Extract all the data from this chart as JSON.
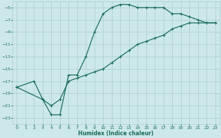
{
  "xlabel": "Humidex (Indice chaleur)",
  "bg_color": "#cce8ea",
  "grid_color": "#aacccc",
  "line_color": "#1a6b5a",
  "xlim": [
    -0.5,
    23.5
  ],
  "ylim": [
    -24,
    -4
  ],
  "xticks": [
    0,
    1,
    2,
    3,
    4,
    5,
    6,
    7,
    8,
    9,
    10,
    11,
    12,
    13,
    14,
    15,
    16,
    17,
    18,
    19,
    20,
    21,
    22,
    23
  ],
  "yticks": [
    -5,
    -7,
    -9,
    -11,
    -13,
    -15,
    -17,
    -19,
    -21,
    -23
  ],
  "line1_x": [
    0,
    2,
    3,
    4,
    5,
    6,
    7,
    8,
    9,
    10,
    11,
    12,
    13,
    14,
    15,
    16,
    17,
    18,
    19,
    20,
    21,
    22,
    23
  ],
  "line1_y": [
    -18,
    -17,
    -20,
    -22.5,
    -22.5,
    -16,
    -16,
    -13,
    -9,
    -6,
    -5,
    -4.5,
    -4.5,
    -5,
    -5,
    -5,
    -5,
    -6,
    -6,
    -6.5,
    -7,
    -7.5,
    -7.5
  ],
  "line2_x": [
    0,
    3,
    4,
    5,
    6,
    7,
    8,
    9,
    10,
    11,
    12,
    13,
    14,
    15,
    16,
    17,
    18,
    19,
    20,
    21,
    22,
    23
  ],
  "line2_y": [
    -18,
    -20,
    -21,
    -20,
    -17,
    -16.5,
    -16,
    -15.5,
    -15,
    -14,
    -13,
    -12,
    -11,
    -10.5,
    -10,
    -9.5,
    -8.5,
    -8,
    -7.5,
    -7.5,
    -7.5,
    -7.5
  ],
  "marker_style": "+"
}
